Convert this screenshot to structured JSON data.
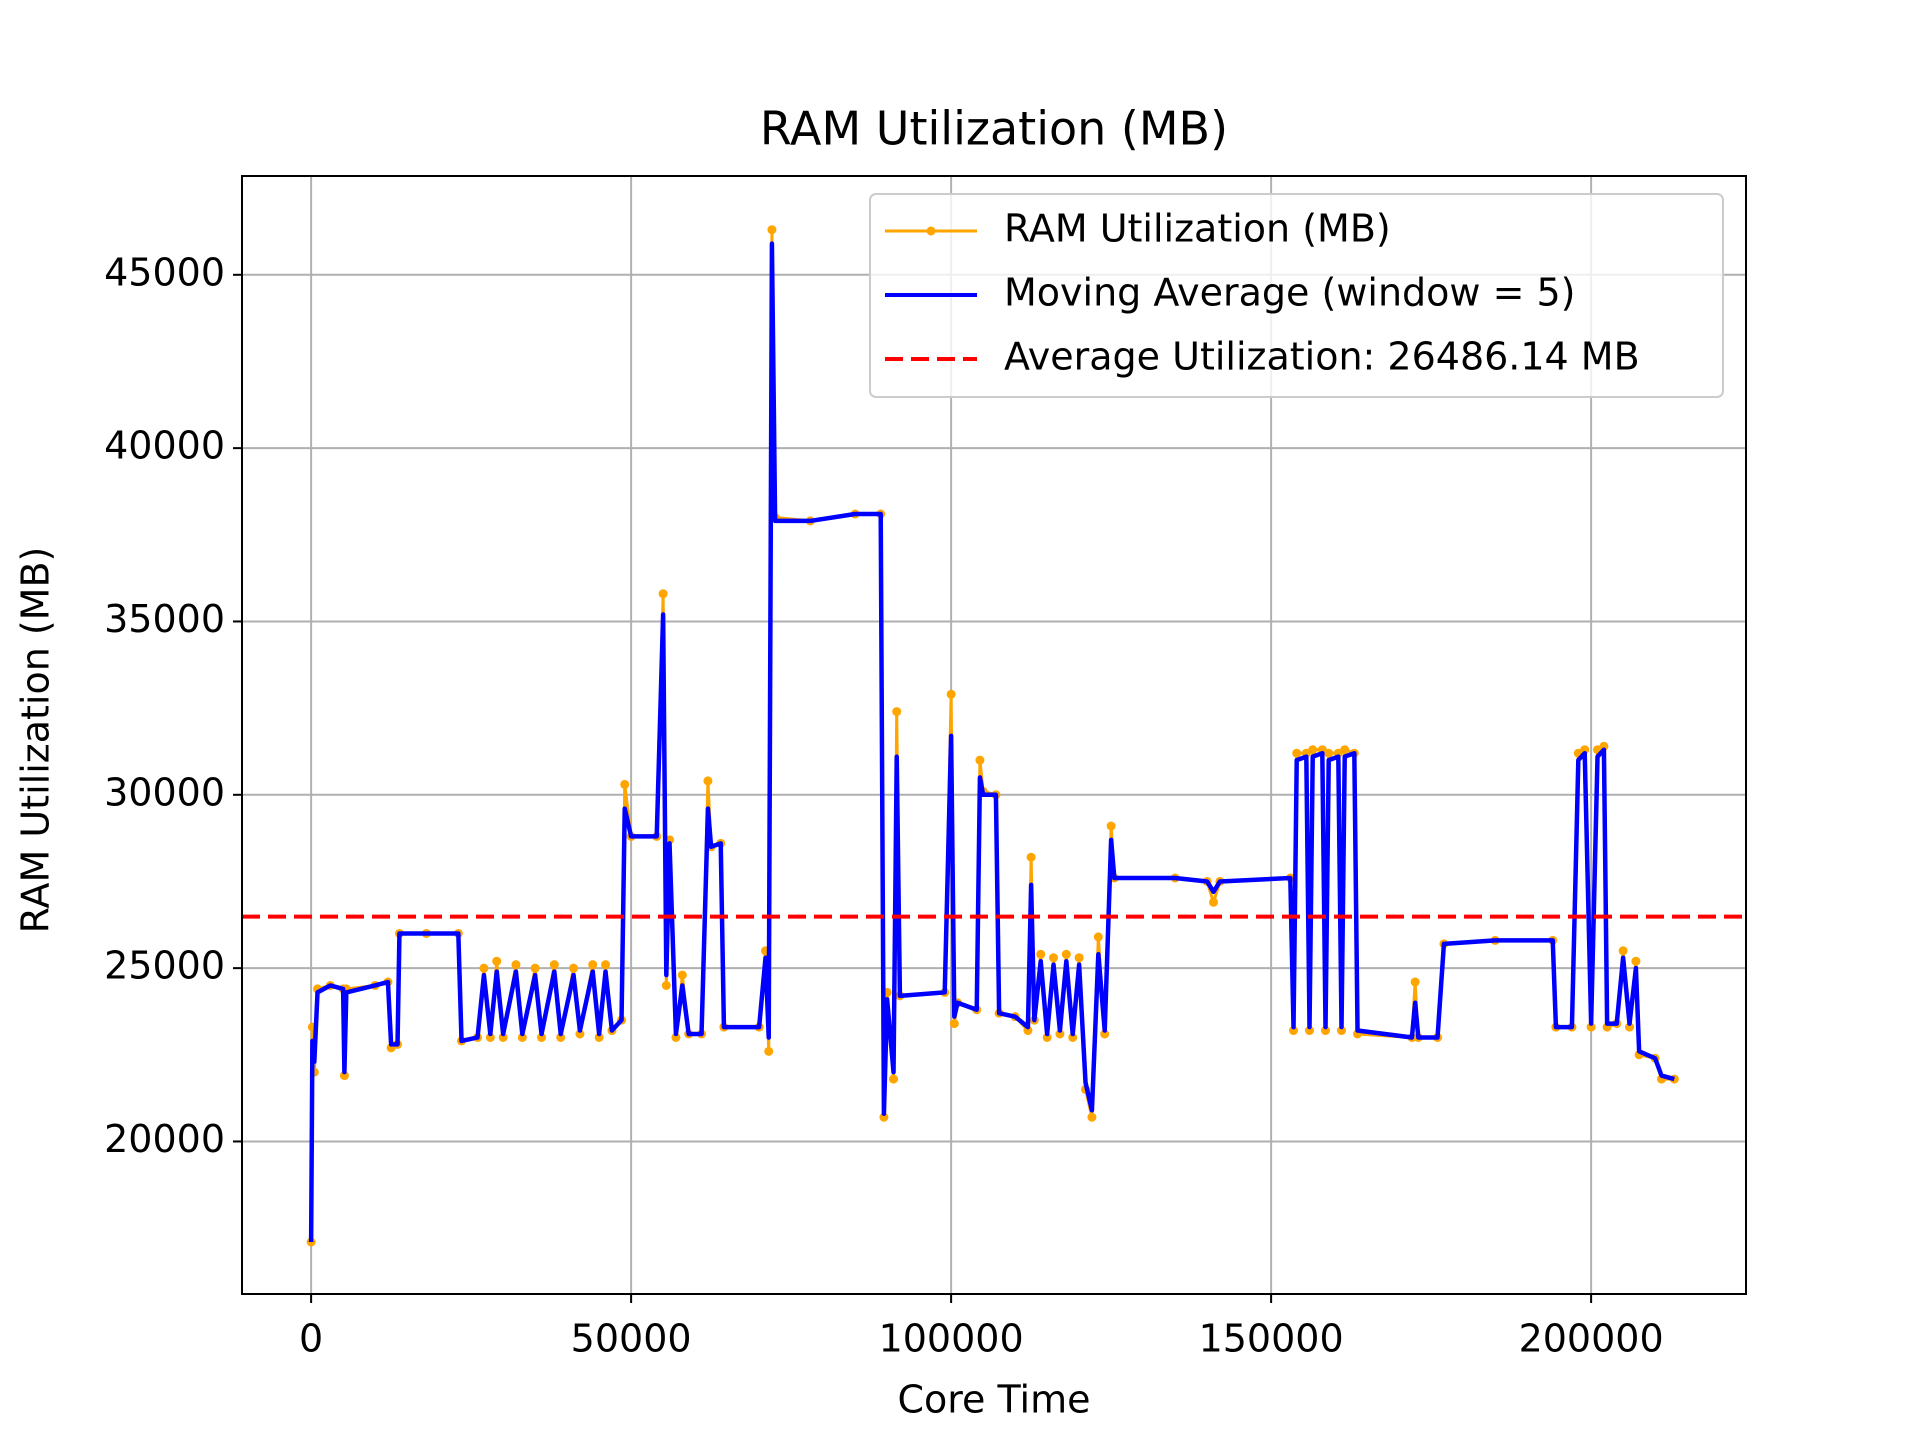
{
  "chart_data": {
    "type": "line",
    "title": "RAM Utilization (MB)",
    "xlabel": "Core Time",
    "ylabel": "RAM Utilization (MB)",
    "x": [
      0,
      200,
      500,
      1000,
      3000,
      5000,
      5200,
      5500,
      10000,
      12000,
      12500,
      13500,
      13800,
      18000,
      23000,
      23500,
      26000,
      27000,
      28000,
      29000,
      30000,
      32000,
      33000,
      35000,
      36000,
      38000,
      39000,
      41000,
      42000,
      44000,
      45000,
      46000,
      47000,
      48500,
      49000,
      50000,
      54000,
      55000,
      55500,
      56000,
      57000,
      58000,
      59000,
      61000,
      62000,
      62500,
      64000,
      64500,
      70000,
      71000,
      71500,
      72000,
      72500,
      78000,
      85000,
      89000,
      89500,
      90000,
      91000,
      91500,
      92000,
      99000,
      100000,
      100500,
      101000,
      104000,
      104500,
      105000,
      107000,
      107500,
      110000,
      112000,
      112500,
      113000,
      114000,
      115000,
      116000,
      117000,
      118000,
      119000,
      120000,
      121000,
      122000,
      123000,
      124000,
      125000,
      125500,
      135000,
      140000,
      141000,
      142000,
      153000,
      153500,
      154000,
      155500,
      156000,
      156500,
      158000,
      158500,
      159000,
      160500,
      161000,
      161500,
      163000,
      163500,
      172000,
      172500,
      173000,
      176000,
      177000,
      185000,
      194000,
      194500,
      197000,
      198000,
      199000,
      200000,
      201000,
      202000,
      202500,
      204000,
      205000,
      206000,
      207000,
      207500,
      210000,
      211000,
      213000
    ],
    "series": [
      {
        "name": "RAM Utilization (MB)",
        "color": "#ffa500",
        "marker": true,
        "values": [
          17100,
          23300,
          22000,
          24400,
          24500,
          24400,
          21900,
          24400,
          24500,
          24600,
          22700,
          22800,
          26000,
          26000,
          26000,
          22900,
          23000,
          25000,
          23000,
          25200,
          23000,
          25100,
          23000,
          25000,
          23000,
          25100,
          23000,
          25000,
          23100,
          25100,
          23000,
          25100,
          23200,
          23500,
          30300,
          28800,
          28800,
          35800,
          24500,
          28700,
          23000,
          24800,
          23100,
          23100,
          30400,
          28500,
          28600,
          23300,
          23300,
          25500,
          22600,
          46300,
          38000,
          37900,
          38100,
          38100,
          20700,
          24300,
          21800,
          32400,
          24200,
          24300,
          32900,
          23400,
          24000,
          23800,
          31000,
          30100,
          30000,
          23700,
          23600,
          23200,
          28200,
          23500,
          25400,
          23000,
          25300,
          23100,
          25400,
          23000,
          25300,
          21500,
          20700,
          25900,
          23100,
          29100,
          27600,
          27600,
          27500,
          26900,
          27500,
          27600,
          23200,
          31200,
          31200,
          23200,
          31300,
          31300,
          23200,
          31200,
          31200,
          23200,
          31300,
          31200,
          23100,
          23000,
          24600,
          23000,
          23000,
          25700,
          25800,
          25800,
          23300,
          23300,
          31200,
          31300,
          23300,
          31300,
          31400,
          23300,
          23400,
          25500,
          23300,
          25200,
          22500,
          22400,
          21800,
          21800
        ]
      },
      {
        "name": "Moving Average (window = 5)",
        "color": "#0000ff",
        "marker": false,
        "values": [
          17100,
          22900,
          22300,
          24300,
          24500,
          24400,
          22000,
          24300,
          24500,
          24600,
          22800,
          22800,
          26000,
          26000,
          26000,
          22900,
          23000,
          24800,
          23100,
          24900,
          23100,
          24900,
          23100,
          24800,
          23100,
          24900,
          23100,
          24800,
          23200,
          24900,
          23100,
          24900,
          23200,
          23500,
          29600,
          28800,
          28800,
          35200,
          24800,
          28600,
          23100,
          24500,
          23100,
          23100,
          29600,
          28500,
          28600,
          23300,
          23300,
          25300,
          23000,
          45900,
          37900,
          37900,
          38100,
          38100,
          20800,
          24100,
          22000,
          31100,
          24200,
          24300,
          31700,
          23600,
          24000,
          23800,
          30500,
          30000,
          30000,
          23700,
          23600,
          23300,
          27400,
          23500,
          25200,
          23100,
          25100,
          23200,
          25200,
          23100,
          25100,
          21700,
          20900,
          25400,
          23200,
          28700,
          27600,
          27600,
          27500,
          27200,
          27500,
          27600,
          23300,
          31000,
          31100,
          23300,
          31100,
          31200,
          23300,
          31000,
          31100,
          23300,
          31100,
          31200,
          23200,
          23000,
          24000,
          23000,
          23000,
          25700,
          25800,
          25800,
          23300,
          23300,
          31000,
          31200,
          23400,
          31100,
          31300,
          23400,
          23400,
          25300,
          23400,
          25000,
          22600,
          22400,
          21900,
          21800
        ]
      }
    ],
    "hline": {
      "name": "Average Utilization: 26486.14 MB",
      "value": 26486.14,
      "color": "#ff0000",
      "linestyle": "dashed"
    },
    "xlim": [
      -10800,
      224200
    ],
    "ylim": [
      15600,
      47850
    ],
    "xticks": [
      0,
      50000,
      100000,
      150000,
      200000
    ],
    "yticks": [
      20000,
      25000,
      30000,
      35000,
      40000,
      45000
    ],
    "grid": true,
    "legend": "upper right"
  }
}
